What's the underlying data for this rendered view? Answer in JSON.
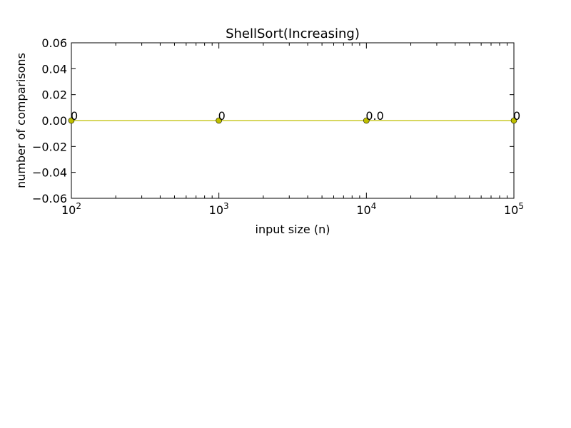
{
  "chart_data": {
    "type": "line",
    "title": "ShellSort(Increasing)",
    "xlabel": "input size (n)",
    "ylabel": "number of comparisons",
    "x_scale": "log",
    "xlim": [
      100,
      100000
    ],
    "ylim": [
      -0.06,
      0.06
    ],
    "x_ticks": [
      {
        "value": 100,
        "base": "10",
        "exp": "2"
      },
      {
        "value": 1000,
        "base": "10",
        "exp": "3"
      },
      {
        "value": 10000,
        "base": "10",
        "exp": "4"
      },
      {
        "value": 100000,
        "base": "10",
        "exp": "5"
      }
    ],
    "y_ticks": [
      {
        "value": 0.06,
        "label": "0.06"
      },
      {
        "value": 0.04,
        "label": "0.04"
      },
      {
        "value": 0.02,
        "label": "0.02"
      },
      {
        "value": 0.0,
        "label": "0.00"
      },
      {
        "value": -0.02,
        "label": "−0.02"
      },
      {
        "value": -0.04,
        "label": "−0.04"
      },
      {
        "value": -0.06,
        "label": "−0.06"
      }
    ],
    "series": [
      {
        "color": "#bfbf00",
        "marker": "circle",
        "x": [
          100,
          1000,
          10000,
          100000
        ],
        "y": [
          0,
          0,
          0,
          0
        ],
        "labels": [
          "0",
          "0",
          "0.0",
          "0"
        ]
      }
    ],
    "grid": false,
    "legend": "none"
  }
}
